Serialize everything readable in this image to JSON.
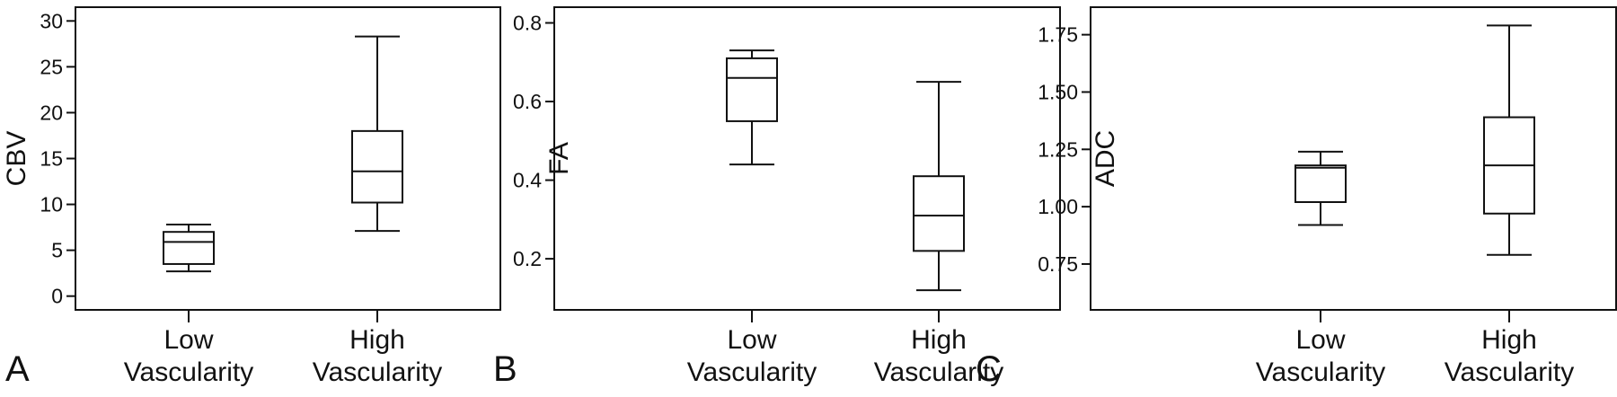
{
  "chart_data": [
    {
      "panel": "A",
      "type": "box",
      "ylabel": "CBV",
      "xlabel": "",
      "ylim": [
        -1.5,
        31.5
      ],
      "yticks": [
        0,
        5,
        10,
        15,
        20,
        25,
        30
      ],
      "categories": [
        {
          "line1": "Low",
          "line2": "Vascularity"
        },
        {
          "line1": "High",
          "line2": "Vascularity"
        }
      ],
      "boxes": [
        {
          "min": 2.7,
          "q1": 3.5,
          "median": 5.9,
          "q3": 7.0,
          "max": 7.8
        },
        {
          "min": 7.1,
          "q1": 10.2,
          "median": 13.6,
          "q3": 18.0,
          "max": 28.3
        }
      ]
    },
    {
      "panel": "B",
      "type": "box",
      "ylabel": "FA",
      "xlabel": "",
      "ylim": [
        0.07,
        0.84
      ],
      "yticks": [
        0.2,
        0.4,
        0.6,
        0.8
      ],
      "categories": [
        {
          "line1": "Low",
          "line2": "Vascularity"
        },
        {
          "line1": "High",
          "line2": "Vascularity"
        }
      ],
      "boxes": [
        {
          "min": 0.44,
          "q1": 0.55,
          "median": 0.66,
          "q3": 0.71,
          "max": 0.73
        },
        {
          "min": 0.12,
          "q1": 0.22,
          "median": 0.31,
          "q3": 0.41,
          "max": 0.65
        }
      ]
    },
    {
      "panel": "C",
      "type": "box",
      "ylabel": "ADC",
      "xlabel": "",
      "ylim": [
        0.55,
        1.87
      ],
      "yticks": [
        0.75,
        1.0,
        1.25,
        1.5,
        1.75
      ],
      "categories": [
        {
          "line1": "Low",
          "line2": "Vascularity"
        },
        {
          "line1": "High",
          "line2": "Vascularity"
        }
      ],
      "boxes": [
        {
          "min": 0.92,
          "q1": 1.02,
          "median": 1.17,
          "q3": 1.18,
          "max": 1.24
        },
        {
          "min": 0.79,
          "q1": 0.97,
          "median": 1.18,
          "q3": 1.39,
          "max": 1.79
        }
      ]
    }
  ]
}
